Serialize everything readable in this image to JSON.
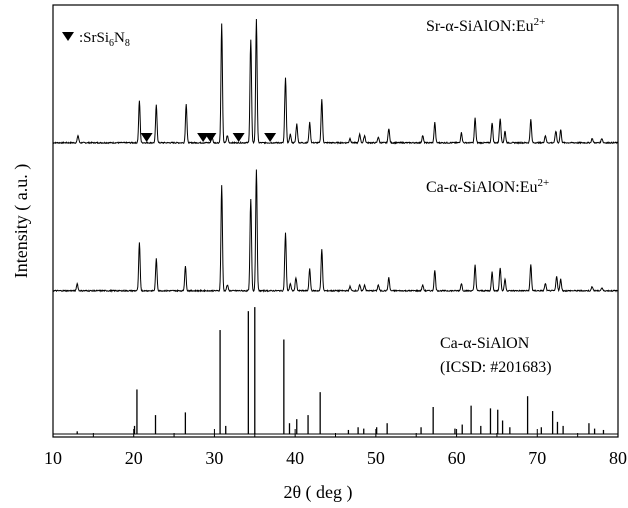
{
  "chart_data": {
    "type": "line",
    "xlabel": "2θ ( deg )",
    "ylabel": "Intensity ( a.u. )",
    "xlim": [
      10,
      80
    ],
    "x_ticks": [
      "10",
      "20",
      "30",
      "40",
      "50",
      "60",
      "70",
      "80"
    ],
    "grid": false,
    "legend": {
      "marker": "filled-down-triangle",
      "label_prefix": ":SrSi",
      "label_sub1": "6",
      "label_mid": "N",
      "label_sub2": "8",
      "placement": "top-left"
    },
    "series": [
      {
        "name": "Sr-α-SiAlON:Eu",
        "name_sup": "2+",
        "color": "#000000",
        "baseline": 0.05,
        "noise": 0.008,
        "peaks": [
          [
            13.1,
            0.05
          ],
          [
            20.7,
            0.29
          ],
          [
            22.8,
            0.26
          ],
          [
            26.5,
            0.27
          ],
          [
            29.7,
            0.04
          ],
          [
            30.9,
            0.82
          ],
          [
            31.6,
            0.05
          ],
          [
            34.5,
            0.71
          ],
          [
            35.2,
            0.85
          ],
          [
            38.8,
            0.45
          ],
          [
            39.4,
            0.06
          ],
          [
            40.2,
            0.13
          ],
          [
            41.8,
            0.14
          ],
          [
            43.3,
            0.3
          ],
          [
            46.8,
            0.03
          ],
          [
            48.0,
            0.06
          ],
          [
            48.6,
            0.05
          ],
          [
            50.3,
            0.04
          ],
          [
            51.6,
            0.1
          ],
          [
            55.8,
            0.05
          ],
          [
            57.3,
            0.14
          ],
          [
            60.6,
            0.07
          ],
          [
            62.3,
            0.17
          ],
          [
            64.4,
            0.14
          ],
          [
            65.4,
            0.17
          ],
          [
            66.0,
            0.08
          ],
          [
            69.2,
            0.16
          ],
          [
            71.0,
            0.05
          ],
          [
            72.3,
            0.08
          ],
          [
            72.9,
            0.09
          ],
          [
            76.8,
            0.03
          ],
          [
            78.0,
            0.03
          ]
        ],
        "markers_x": [
          21.6,
          28.6,
          29.5,
          33.0,
          36.9
        ]
      },
      {
        "name": "Ca-α-SiAlON:Eu",
        "name_sup": "2+",
        "color": "#000000",
        "baseline": 0.05,
        "noise": 0.008,
        "peaks": [
          [
            13.0,
            0.05
          ],
          [
            20.7,
            0.33
          ],
          [
            22.8,
            0.22
          ],
          [
            26.4,
            0.17
          ],
          [
            30.9,
            0.73
          ],
          [
            31.6,
            0.04
          ],
          [
            34.5,
            0.63
          ],
          [
            35.2,
            0.84
          ],
          [
            38.8,
            0.4
          ],
          [
            39.4,
            0.05
          ],
          [
            40.1,
            0.09
          ],
          [
            41.8,
            0.15
          ],
          [
            43.3,
            0.29
          ],
          [
            46.8,
            0.03
          ],
          [
            48.0,
            0.04
          ],
          [
            48.6,
            0.04
          ],
          [
            50.3,
            0.04
          ],
          [
            51.6,
            0.09
          ],
          [
            55.8,
            0.04
          ],
          [
            57.3,
            0.14
          ],
          [
            60.6,
            0.05
          ],
          [
            62.3,
            0.18
          ],
          [
            64.4,
            0.13
          ],
          [
            65.4,
            0.16
          ],
          [
            66.0,
            0.08
          ],
          [
            69.2,
            0.18
          ],
          [
            71.0,
            0.05
          ],
          [
            72.4,
            0.1
          ],
          [
            72.9,
            0.08
          ],
          [
            76.8,
            0.03
          ],
          [
            78.0,
            0.02
          ]
        ]
      },
      {
        "name": "Ca-α-SiAlON",
        "name_line2": "(ICSD: #201683)",
        "style": "stick",
        "color": "#000000",
        "baseline": 0.0,
        "peaks": [
          [
            13.0,
            0.02
          ],
          [
            20.4,
            0.33
          ],
          [
            20.1,
            0.06
          ],
          [
            22.7,
            0.14
          ],
          [
            26.4,
            0.16
          ],
          [
            30.7,
            0.77
          ],
          [
            31.4,
            0.06
          ],
          [
            34.2,
            0.91
          ],
          [
            35.0,
            0.94
          ],
          [
            38.6,
            0.7
          ],
          [
            39.3,
            0.08
          ],
          [
            40.2,
            0.11
          ],
          [
            41.6,
            0.14
          ],
          [
            43.1,
            0.31
          ],
          [
            46.6,
            0.03
          ],
          [
            47.8,
            0.05
          ],
          [
            48.5,
            0.04
          ],
          [
            50.1,
            0.05
          ],
          [
            51.4,
            0.08
          ],
          [
            55.6,
            0.05
          ],
          [
            57.1,
            0.2
          ],
          [
            59.8,
            0.04
          ],
          [
            60.7,
            0.07
          ],
          [
            61.8,
            0.21
          ],
          [
            63.0,
            0.06
          ],
          [
            64.2,
            0.19
          ],
          [
            65.1,
            0.18
          ],
          [
            65.7,
            0.1
          ],
          [
            66.6,
            0.05
          ],
          [
            68.8,
            0.28
          ],
          [
            70.5,
            0.05
          ],
          [
            71.9,
            0.17
          ],
          [
            72.5,
            0.09
          ],
          [
            73.2,
            0.06
          ],
          [
            76.4,
            0.08
          ],
          [
            77.1,
            0.04
          ],
          [
            78.2,
            0.03
          ]
        ]
      }
    ]
  }
}
